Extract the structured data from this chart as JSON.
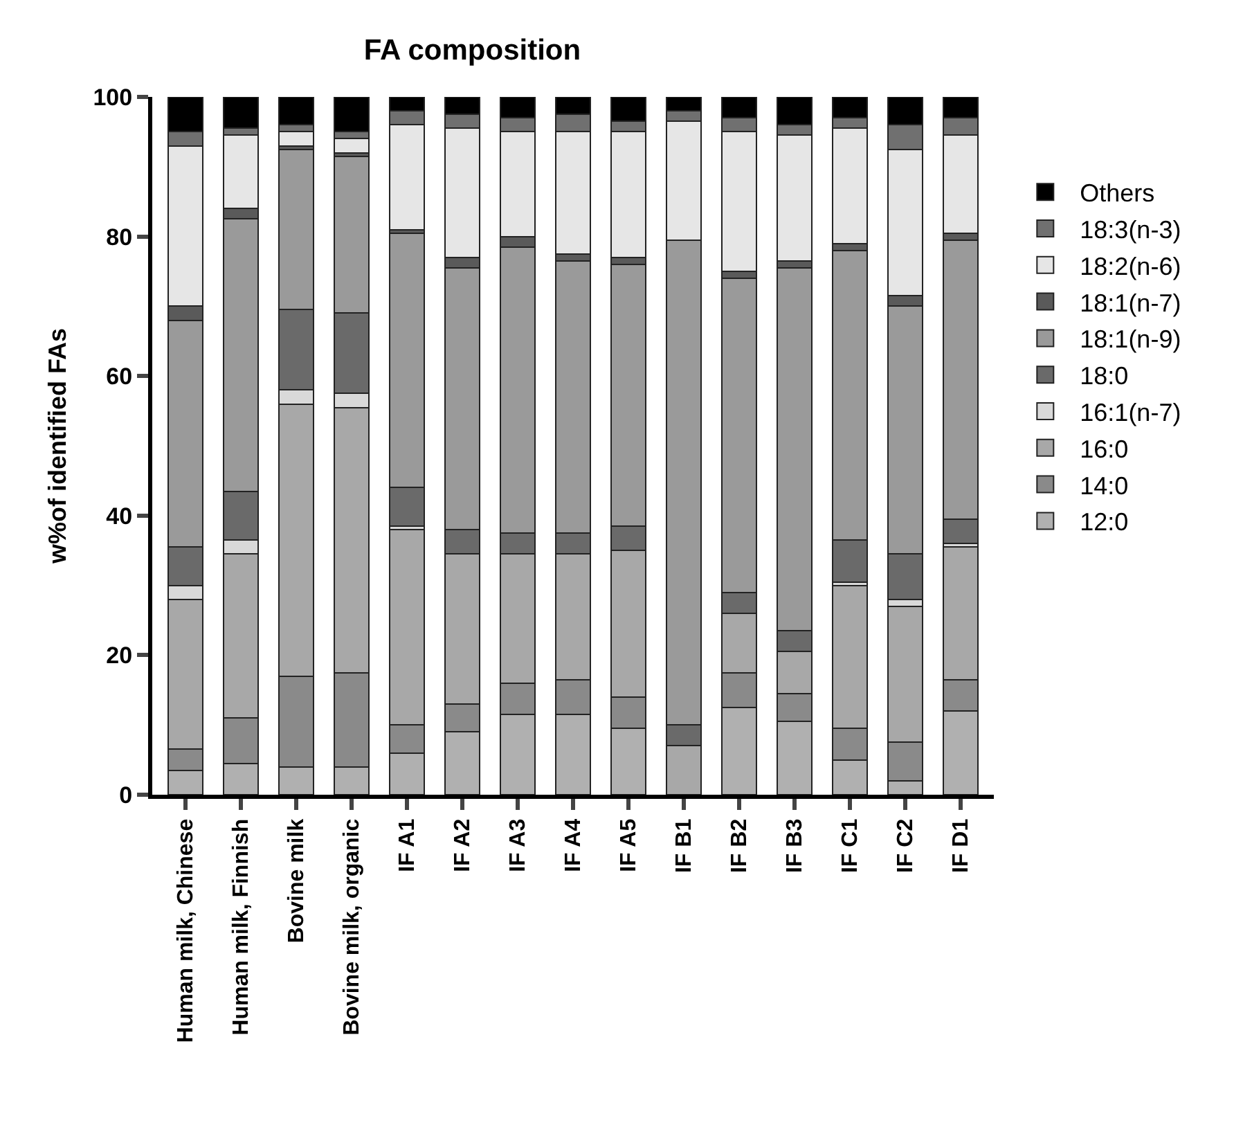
{
  "chart_data": {
    "type": "bar",
    "stacked": true,
    "title": "FA composition",
    "ylabel": "w%of identified FAs",
    "categories": [
      "Human milk, Chinese",
      "Human milk, Finnish",
      "Bovine milk",
      "Bovine milk, organic",
      "IF A1",
      "IF A2",
      "IF A3",
      "IF A4",
      "IF A5",
      "IF B1",
      "IF B2",
      "IF B3",
      "IF C1",
      "IF C2",
      "IF D1"
    ],
    "series": [
      {
        "name": "12:0",
        "color": "#b0b0b0",
        "values": [
          3.5,
          4.5,
          4,
          4,
          6,
          9,
          11.5,
          11.5,
          9.5,
          0,
          12.5,
          10.5,
          5,
          2,
          12
        ]
      },
      {
        "name": "14:0",
        "color": "#8a8a8a",
        "values": [
          3,
          6.5,
          13,
          13.5,
          4,
          4,
          4.5,
          5,
          4.5,
          0,
          5,
          4,
          4.5,
          5.5,
          4.5
        ]
      },
      {
        "name": "16:0",
        "color": "#a8a8a8",
        "values": [
          21.5,
          23.5,
          39,
          38,
          28,
          21.5,
          18.5,
          18,
          21,
          7,
          8.5,
          6,
          20.5,
          19.5,
          19
        ]
      },
      {
        "name": "16:1(n-7)",
        "color": "#d9d9d9",
        "values": [
          2,
          2,
          2,
          2,
          0.5,
          0,
          0,
          0,
          0,
          0,
          0,
          0,
          0.5,
          1,
          0.5
        ]
      },
      {
        "name": "18:0",
        "color": "#6a6a6a",
        "values": [
          5.5,
          7,
          11.5,
          11.5,
          5.5,
          3.5,
          3,
          3,
          3.5,
          3,
          3,
          3,
          6,
          6.5,
          3.5
        ]
      },
      {
        "name": "18:1(n-9)",
        "color": "#9a9a9a",
        "values": [
          32.5,
          39,
          23,
          22.5,
          36.5,
          37.5,
          41,
          39,
          37.5,
          69.5,
          45,
          52,
          41.5,
          35.5,
          40
        ]
      },
      {
        "name": "18:1(n-7)",
        "color": "#5a5a5a",
        "values": [
          2,
          1.5,
          0.5,
          0.5,
          0.5,
          1.5,
          1.5,
          1,
          1,
          0,
          1,
          1,
          1,
          1.5,
          1
        ]
      },
      {
        "name": "18:2(n-6)",
        "color": "#e6e6e6",
        "values": [
          23,
          10.5,
          2,
          2,
          15,
          18.5,
          15,
          17.5,
          18,
          17,
          20,
          18,
          16.5,
          21,
          14
        ]
      },
      {
        "name": "18:3(n-3)",
        "color": "#707070",
        "values": [
          2,
          1,
          1,
          1,
          2,
          2,
          2,
          2.5,
          1.5,
          1.5,
          2,
          1.5,
          1.5,
          3.5,
          2.5
        ]
      },
      {
        "name": "Others",
        "color": "#000000",
        "values": [
          5,
          4.5,
          4,
          5,
          2,
          2.5,
          3,
          2.5,
          3.5,
          2,
          3,
          4,
          3,
          4,
          3
        ]
      }
    ],
    "ylim": [
      0,
      100
    ],
    "yticks": [
      0,
      20,
      40,
      60,
      80,
      100
    ],
    "legend": "right"
  }
}
